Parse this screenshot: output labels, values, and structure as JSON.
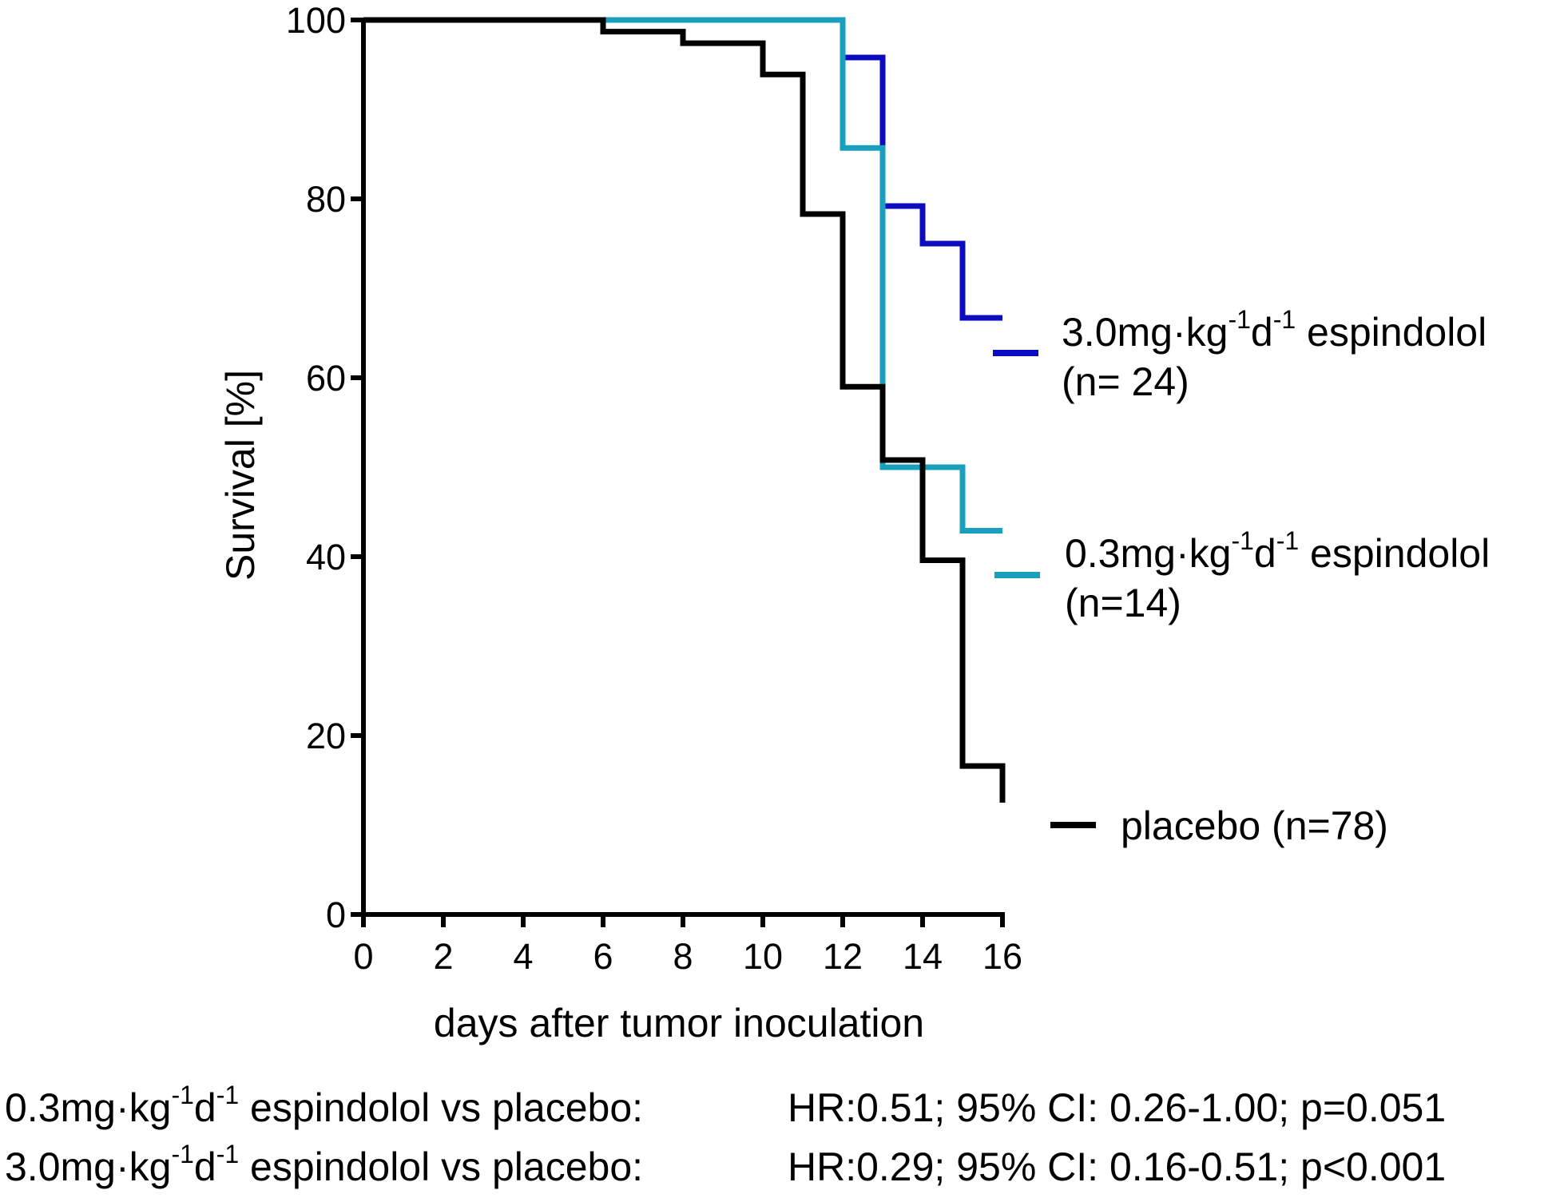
{
  "chart_data": {
    "type": "line",
    "subtype": "kaplan-meier step",
    "xlabel": "days after tumor inoculation",
    "ylabel": "Survival [%]",
    "xlim": [
      0,
      16
    ],
    "ylim": [
      0,
      100
    ],
    "xticks": [
      "0",
      "2",
      "4",
      "6",
      "8",
      "10",
      "12",
      "14",
      "16"
    ],
    "yticks": [
      "0",
      "20",
      "40",
      "60",
      "80",
      "100"
    ],
    "grid": false,
    "legend_position": "right",
    "series": [
      {
        "key": "high",
        "color": "#0b0bbf",
        "legend_main": "3.0mg·kg",
        "legend_sup1": "-1",
        "legend_mid": "d",
        "legend_sup2": "-1",
        "legend_end": " espindolol",
        "legend_n": "(n= 24)",
        "x": [
          0,
          12,
          12,
          13,
          13,
          14,
          14,
          15,
          15,
          16
        ],
        "y": [
          100,
          100,
          95.8,
          95.8,
          79.2,
          79.2,
          75,
          75,
          66.7,
          66.7
        ]
      },
      {
        "key": "low",
        "color": "#1a9fbf",
        "legend_main": "0.3mg·kg",
        "legend_sup1": "-1",
        "legend_mid": "d",
        "legend_sup2": "-1",
        "legend_end": " espindolol",
        "legend_n": "(n=14)",
        "x": [
          0,
          12,
          12,
          13,
          13,
          15,
          15,
          16
        ],
        "y": [
          100,
          100,
          85.7,
          85.7,
          50,
          50,
          42.9,
          42.9
        ]
      },
      {
        "key": "placebo",
        "color": "#000000",
        "legend_main": "placebo (n=78)",
        "x": [
          0,
          6,
          6,
          8,
          8,
          10,
          10,
          11,
          11,
          12,
          12,
          13,
          13,
          14,
          14,
          15,
          15,
          16,
          16
        ],
        "y": [
          100,
          100,
          98.7,
          98.7,
          97.4,
          97.4,
          93.9,
          93.9,
          78.3,
          78.3,
          59,
          59,
          50.8,
          50.8,
          39.6,
          39.6,
          16.6,
          16.6,
          12.5
        ]
      }
    ]
  },
  "footer": [
    {
      "main": "0.3mg·kg",
      "sup1": "-1",
      "mid": "d",
      "sup2": "-1",
      "end": " espindolol vs placebo:",
      "stat": "HR:0.51; 95% CI: 0.26-1.00; p=0.051"
    },
    {
      "main": "3.0mg·kg",
      "sup1": "-1",
      "mid": "d",
      "sup2": "-1",
      "end": " espindolol vs placebo:",
      "stat": "HR:0.29; 95% CI: 0.16-0.51; p<0.001"
    }
  ]
}
